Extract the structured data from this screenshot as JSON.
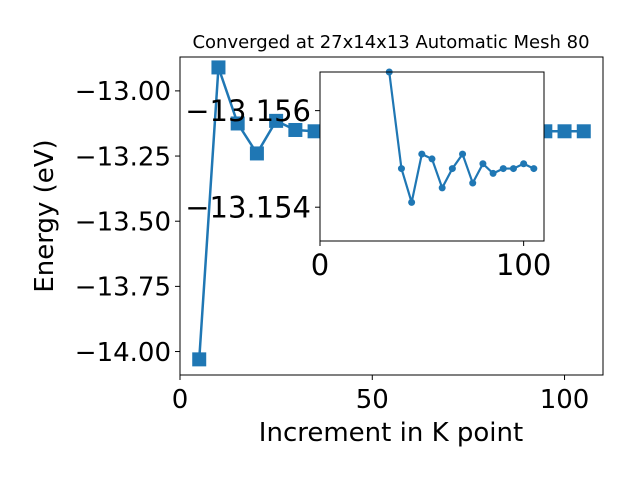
{
  "chart_data": [
    {
      "type": "line",
      "title": "Converged at 27x14x13 Automatic Mesh 80",
      "xlabel": "Increment in K point",
      "ylabel": "Energy (eV)",
      "xlim": [
        0,
        110
      ],
      "ylim": [
        -14.09,
        -12.87
      ],
      "xticks": [
        0,
        50,
        100
      ],
      "yticks": [
        -14.0,
        -13.75,
        -13.5,
        -13.25,
        -13.0
      ],
      "xtick_labels": [
        "0",
        "50",
        "100"
      ],
      "ytick_labels": [
        "−14.00",
        "−13.75",
        "−13.50",
        "−13.25",
        "−13.00"
      ],
      "grid": false,
      "marker": "square",
      "color": "#1f77b4",
      "x": [
        5,
        10,
        15,
        20,
        25,
        30,
        35,
        95,
        100,
        105
      ],
      "values": [
        -14.03,
        -12.91,
        -13.125,
        -13.24,
        -13.115,
        -13.15,
        -13.155,
        -13.155,
        -13.155,
        -13.155
      ]
    },
    {
      "type": "line",
      "title": "",
      "xlabel": "",
      "ylabel": "",
      "xlim": [
        0,
        110
      ],
      "ylim": [
        -13.1533,
        -13.1568
      ],
      "xticks": [
        0,
        100
      ],
      "yticks": [
        -13.156,
        -13.154
      ],
      "xtick_labels": [
        "0",
        "100"
      ],
      "ytick_labels": [
        "−13.156",
        "−13.154"
      ],
      "grid": false,
      "marker": "circle",
      "color": "#1f77b4",
      "x": [
        34,
        40,
        45,
        50,
        55,
        60,
        65,
        70,
        75,
        80,
        85,
        90,
        95,
        100,
        105
      ],
      "values": [
        -13.1568,
        -13.1548,
        -13.1541,
        -13.1551,
        -13.155,
        -13.1544,
        -13.1548,
        -13.1551,
        -13.1545,
        -13.1549,
        -13.1547,
        -13.1548,
        -13.1548,
        -13.1549,
        -13.1548
      ]
    }
  ]
}
